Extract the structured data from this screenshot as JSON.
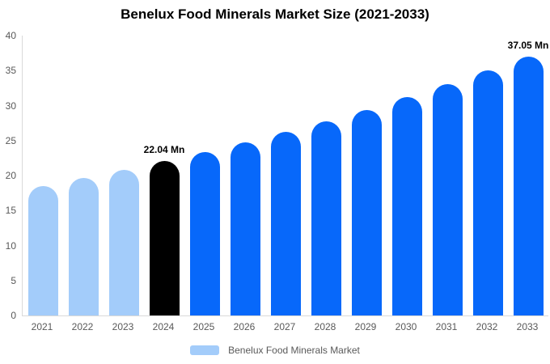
{
  "chart_data": {
    "type": "bar",
    "title": "Benelux Food Minerals Market Size (2021-2033)",
    "xlabel": "",
    "ylabel": "",
    "ylim": [
      0,
      40
    ],
    "yticks": [
      0,
      5,
      10,
      15,
      20,
      25,
      30,
      35,
      40
    ],
    "grid": false,
    "unit": "Mn",
    "points": [
      {
        "category": "2021",
        "value": 18.53,
        "color_key": "past",
        "label": ""
      },
      {
        "category": "2022",
        "value": 19.63,
        "color_key": "past",
        "label": ""
      },
      {
        "category": "2023",
        "value": 20.8,
        "color_key": "past",
        "label": ""
      },
      {
        "category": "2024",
        "value": 22.04,
        "color_key": "highlight",
        "label": "22.04 Mn"
      },
      {
        "category": "2025",
        "value": 23.35,
        "color_key": "forecast",
        "label": ""
      },
      {
        "category": "2026",
        "value": 24.74,
        "color_key": "forecast",
        "label": ""
      },
      {
        "category": "2027",
        "value": 26.21,
        "color_key": "forecast",
        "label": ""
      },
      {
        "category": "2028",
        "value": 27.77,
        "color_key": "forecast",
        "label": ""
      },
      {
        "category": "2029",
        "value": 29.42,
        "color_key": "forecast",
        "label": ""
      },
      {
        "category": "2030",
        "value": 31.17,
        "color_key": "forecast",
        "label": ""
      },
      {
        "category": "2031",
        "value": 33.02,
        "color_key": "forecast",
        "label": ""
      },
      {
        "category": "2032",
        "value": 34.98,
        "color_key": "forecast",
        "label": ""
      },
      {
        "category": "2033",
        "value": 37.05,
        "color_key": "forecast",
        "label": "37.05 Mn"
      }
    ],
    "colors": {
      "past": "#A3CCFA",
      "highlight": "#000000",
      "forecast": "#0768FA",
      "axis_line": "#d9d9d9",
      "tick_text": "#595959"
    },
    "legend": {
      "position": "bottom",
      "label": "Benelux Food Minerals Market",
      "swatch_color": "#A3CCFA"
    }
  }
}
